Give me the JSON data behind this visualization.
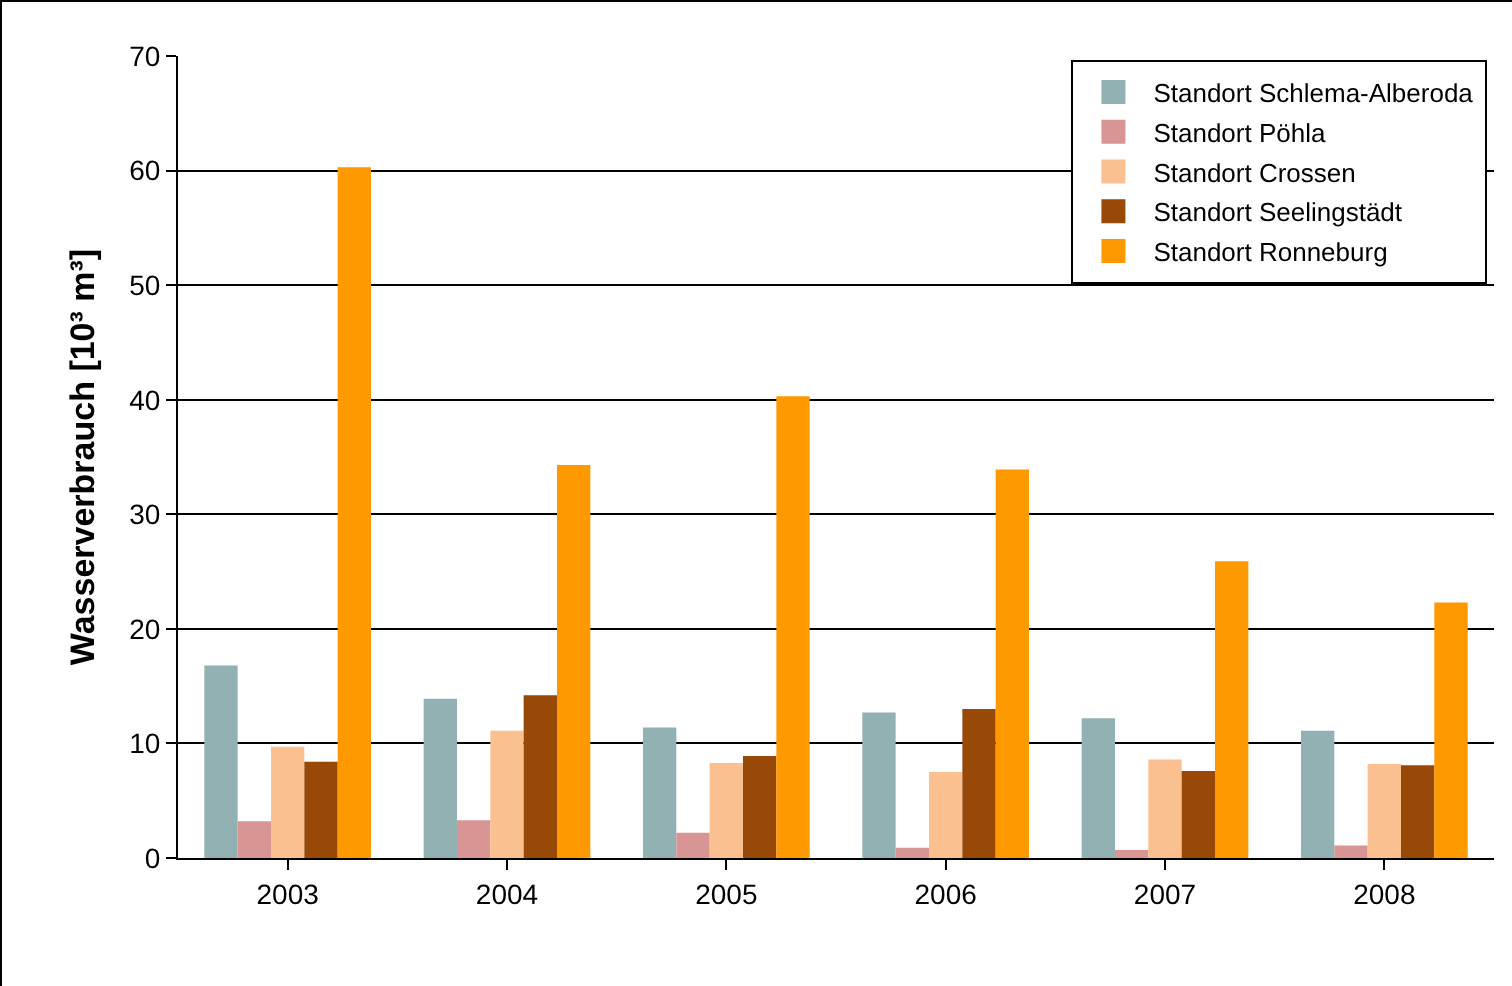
{
  "chart_data": {
    "type": "bar",
    "ylabel": "Wasserverbrauch [10³ m³]",
    "categories": [
      "2003",
      "2004",
      "2005",
      "2006",
      "2007",
      "2008"
    ],
    "series": [
      {
        "name": "Standort Schlema-Alberoda",
        "color": "#92b1b3",
        "values": [
          16.8,
          13.9,
          11.4,
          12.7,
          12.2,
          11.1
        ]
      },
      {
        "name": "Standort Pöhla",
        "color": "#d99594",
        "values": [
          3.2,
          3.3,
          2.2,
          0.9,
          0.7,
          1.1
        ]
      },
      {
        "name": "Standort Crossen",
        "color": "#fac090",
        "values": [
          9.7,
          11.1,
          8.3,
          7.5,
          8.6,
          8.2
        ]
      },
      {
        "name": "Standort Seelingstädt",
        "color": "#984807",
        "values": [
          8.4,
          14.2,
          8.9,
          13.0,
          7.6,
          8.1
        ]
      },
      {
        "name": "Standort Ronneburg",
        "color": "#ff9900",
        "values": [
          60.3,
          34.3,
          40.3,
          33.9,
          25.9,
          22.3
        ]
      }
    ],
    "ylim": [
      0,
      70
    ],
    "yticks": [
      0,
      10,
      20,
      30,
      40,
      50,
      60,
      70
    ],
    "grid": "y",
    "legend": "top right"
  }
}
